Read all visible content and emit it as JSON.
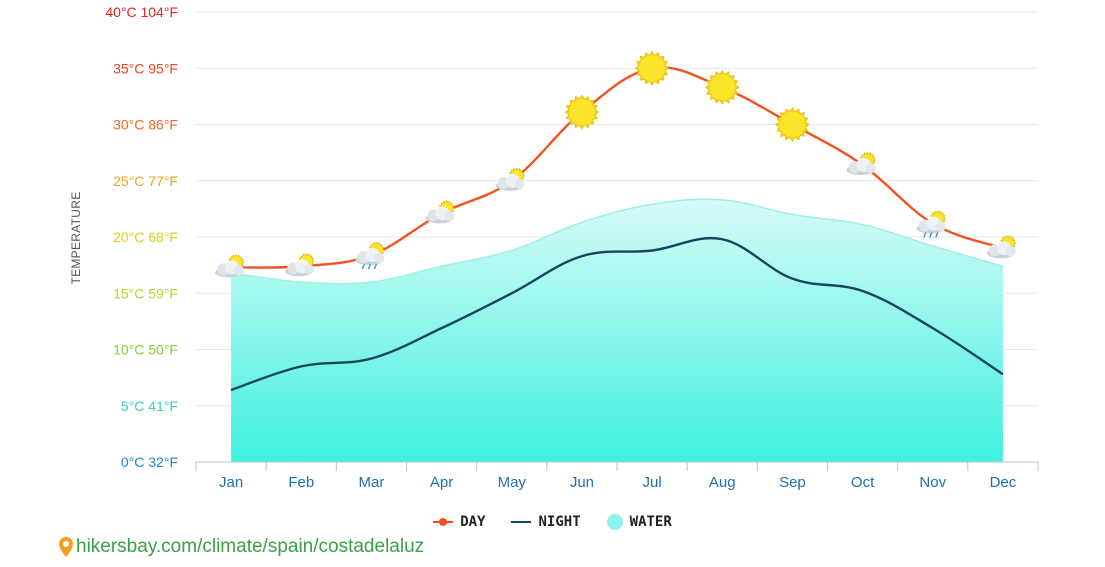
{
  "chart_data": {
    "type": "line",
    "ylabel": "TEMPERATURE",
    "ylim": [
      0,
      40
    ],
    "grid": true,
    "y_ticks": [
      {
        "value": 0,
        "label": "0°C 32°F",
        "color": "#1e88c8"
      },
      {
        "value": 5,
        "label": "5°C 41°F",
        "color": "#33cfc3"
      },
      {
        "value": 10,
        "label": "10°C 50°F",
        "color": "#7fd12d"
      },
      {
        "value": 15,
        "label": "15°C 59°F",
        "color": "#b7d42a"
      },
      {
        "value": 20,
        "label": "20°C 68°F",
        "color": "#e2cc1a"
      },
      {
        "value": 25,
        "label": "25°C 77°F",
        "color": "#f0a220"
      },
      {
        "value": 30,
        "label": "30°C 86°F",
        "color": "#f06a20"
      },
      {
        "value": 35,
        "label": "35°C 95°F",
        "color": "#f0421f"
      },
      {
        "value": 40,
        "label": "40°C 104°F",
        "color": "#e8231c"
      }
    ],
    "categories": [
      "Jan",
      "Feb",
      "Mar",
      "Apr",
      "May",
      "Jun",
      "Jul",
      "Aug",
      "Sep",
      "Oct",
      "Nov",
      "Dec"
    ],
    "series": [
      {
        "name": "DAY",
        "color": "#f4511e",
        "values": [
          17.3,
          17.4,
          18.4,
          22.1,
          25.0,
          31.1,
          35.0,
          33.3,
          30.0,
          26.4,
          21.2,
          19.0
        ]
      },
      {
        "name": "NIGHT",
        "color": "#15465c",
        "values": [
          6.4,
          8.5,
          9.2,
          11.9,
          15.0,
          18.3,
          18.8,
          19.8,
          16.3,
          15.2,
          11.9,
          7.8
        ]
      },
      {
        "name": "WATER",
        "color": "#8ff2ec",
        "values": [
          16.8,
          16.0,
          16.0,
          17.4,
          18.8,
          21.3,
          22.9,
          23.3,
          22.0,
          21.1,
          19.2,
          17.4
        ]
      }
    ],
    "weather_icons": [
      "partly-cloudy",
      "partly-cloudy",
      "rain-sun",
      "partly-cloudy",
      "partly-cloudy",
      "sun",
      "sun",
      "sun",
      "sun",
      "partly-cloudy",
      "rain-sun",
      "partly-cloudy"
    ],
    "legend_position": "bottom"
  },
  "source": {
    "icon": "map-pin-icon",
    "text": "hikersbay.com/climate/spain/costadelaluz"
  }
}
